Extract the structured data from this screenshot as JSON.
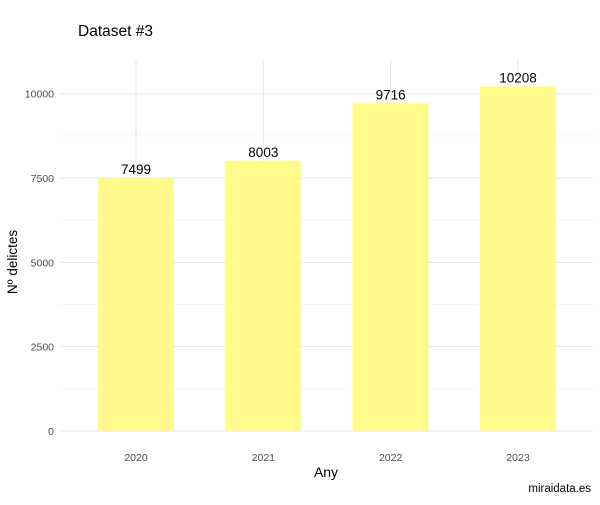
{
  "chart_data": {
    "type": "bar",
    "title": "Dataset #3",
    "xlabel": "Any",
    "ylabel": "Nº delictes",
    "caption": "miraidata.es",
    "categories": [
      "2020",
      "2021",
      "2022",
      "2023"
    ],
    "values": [
      7499,
      8003,
      9716,
      10208
    ],
    "data_labels": [
      "7499",
      "8003",
      "9716",
      "10208"
    ],
    "ylim": [
      0,
      11000
    ],
    "yticks": [
      0,
      2500,
      5000,
      7500,
      10000
    ],
    "ytick_labels": [
      "0",
      "2500",
      "5000",
      "7500",
      "10000"
    ],
    "grid": true,
    "legend": "none",
    "bar_color": "#FFFA8A",
    "grid_major_color": "#E5E5E5",
    "grid_minor_color": "#F0F0F0"
  }
}
